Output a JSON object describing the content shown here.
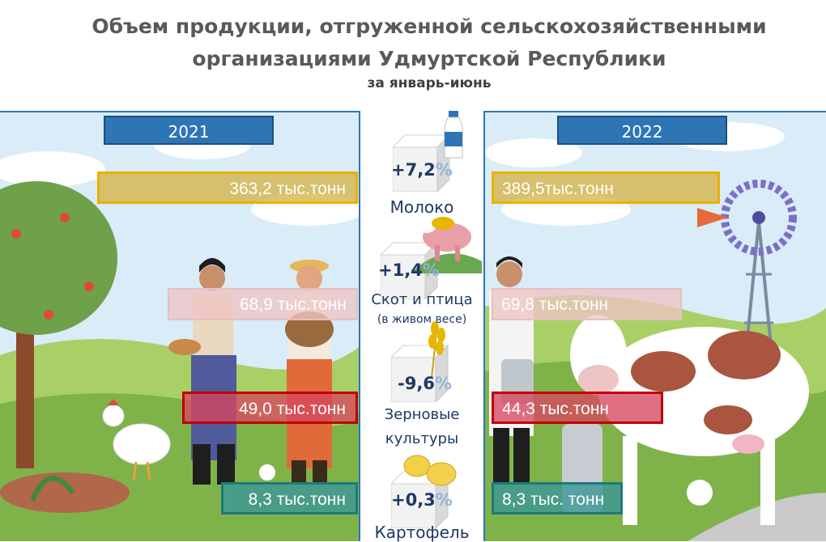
{
  "header": {
    "title_line1": "Объем продукции, отгруженной сельскохозяйственными",
    "title_line2": "организациями  Удмуртской Республики",
    "subtitle": "за январь-июнь"
  },
  "years": {
    "left": "2021",
    "right": "2022"
  },
  "values_2021": {
    "milk": "363,2 тыс.тонн",
    "livestock": "68,9 тыс.тонн",
    "grain": "49,0 тыс.тонн",
    "potato": "8,3 тыс.тонн"
  },
  "values_2022": {
    "milk": "389,5тыс.тонн",
    "livestock": "69,8 тыс.тонн",
    "grain": "44,3 тыс.тонн",
    "potato": "8,3 тыс. тонн"
  },
  "changes": {
    "milk": {
      "sign": "+7,2",
      "unit": "%"
    },
    "livestock": {
      "sign": "+1,4",
      "unit": "%"
    },
    "grain": {
      "sign": "-9,6",
      "unit": "%"
    },
    "potato": {
      "sign": "+0,3",
      "unit": "%"
    }
  },
  "categories": {
    "milk": "Молоко",
    "livestock": "Скот и птица",
    "livestock_note": "(в живом весе)",
    "grain_line1": "Зерновые",
    "grain_line2": "культуры",
    "potato": "Картофель"
  },
  "colors": {
    "panel_border": "#2e75b6",
    "year_tab": "#2e75b6",
    "milk": "#e7b200",
    "livestock": "#eec4c4",
    "grain": "#c00000",
    "potato": "#1d7a7a",
    "pct_text": "#1f3864",
    "title_text": "#595959"
  },
  "icons": [
    "milk-bottle-icon",
    "pig-cow-icon",
    "wheat-icon",
    "potato-icon",
    "windmill-icon"
  ]
}
